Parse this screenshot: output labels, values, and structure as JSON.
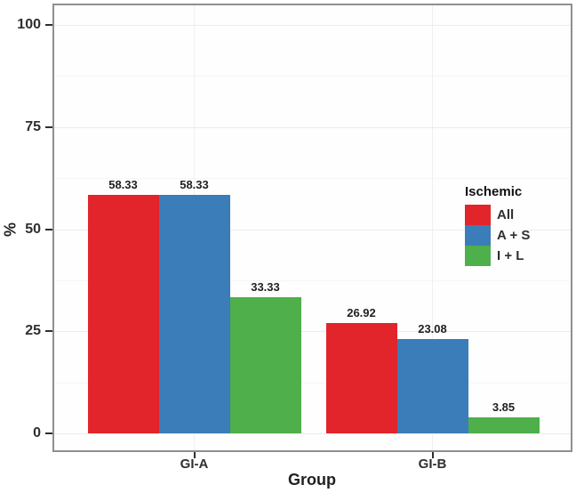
{
  "chart_data": {
    "type": "bar",
    "title": "",
    "xlabel": "Group",
    "ylabel": "%",
    "categories": [
      "GI-A",
      "GI-B"
    ],
    "series": [
      {
        "name": "All",
        "color": "#e2242b",
        "values": [
          58.33,
          26.92
        ]
      },
      {
        "name": "A + S",
        "color": "#3a7db9",
        "values": [
          58.33,
          23.08
        ]
      },
      {
        "name": "I + L",
        "color": "#4eaf4b",
        "values": [
          33.33,
          3.85
        ]
      }
    ],
    "ylim": [
      0,
      100
    ],
    "yticks": [
      0,
      25,
      50,
      75,
      100
    ],
    "minor_yticks": [
      12.5,
      37.5,
      62.5,
      87.5
    ],
    "value_label_decimals": 2,
    "grid": true,
    "legend_title": "Ischemic",
    "legend_position": "right-inside",
    "panel_border_color": "#8f8f8f",
    "gridline_color": "#ececec"
  }
}
